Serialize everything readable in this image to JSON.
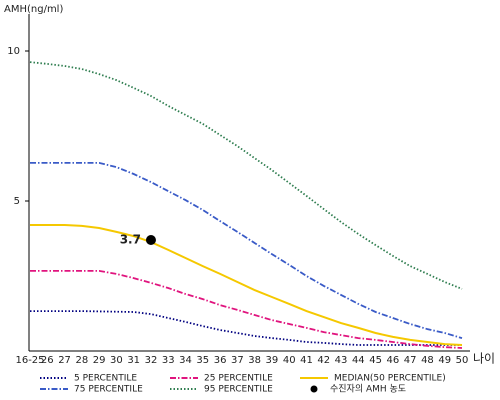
{
  "chart_data": {
    "type": "line",
    "y_label": "AMH(ng/ml)",
    "x_label": "나이",
    "categories": [
      "16-25",
      "26",
      "27",
      "28",
      "29",
      "30",
      "31",
      "32",
      "33",
      "34",
      "35",
      "36",
      "37",
      "38",
      "39",
      "40",
      "41",
      "42",
      "43",
      "44",
      "45",
      "46",
      "47",
      "48",
      "49",
      "50"
    ],
    "ylim": [
      0,
      11.2
    ],
    "yticks": [
      5,
      10
    ],
    "series": [
      {
        "name": "5 PERCENTILE",
        "color": "#000080",
        "style": "dotted",
        "values": [
          1.33,
          1.33,
          1.33,
          1.33,
          1.32,
          1.31,
          1.3,
          1.23,
          1.1,
          0.97,
          0.83,
          0.7,
          0.6,
          0.5,
          0.43,
          0.37,
          0.3,
          0.27,
          0.23,
          0.2,
          0.2,
          0.2,
          0.2,
          0.2,
          0.2,
          0.2
        ]
      },
      {
        "name": "25 PERCENTILE",
        "color": "#e0147e",
        "style": "dashdot",
        "values": [
          2.67,
          2.67,
          2.67,
          2.67,
          2.67,
          2.57,
          2.43,
          2.27,
          2.1,
          1.9,
          1.73,
          1.53,
          1.37,
          1.2,
          1.03,
          0.9,
          0.77,
          0.63,
          0.53,
          0.43,
          0.37,
          0.3,
          0.23,
          0.17,
          0.13,
          0.1
        ]
      },
      {
        "name": "MEDIAN(50 PERCENTILE)",
        "color": "#f5c800",
        "style": "solid",
        "values": [
          4.2,
          4.2,
          4.2,
          4.17,
          4.1,
          3.97,
          3.83,
          3.63,
          3.37,
          3.1,
          2.83,
          2.57,
          2.3,
          2.03,
          1.8,
          1.57,
          1.33,
          1.13,
          0.93,
          0.77,
          0.6,
          0.47,
          0.37,
          0.3,
          0.23,
          0.2
        ]
      },
      {
        "name": "75 PERCENTILE",
        "color": "#3a5bc7",
        "style": "dashdot",
        "values": [
          6.27,
          6.27,
          6.27,
          6.27,
          6.27,
          6.13,
          5.9,
          5.63,
          5.33,
          5.03,
          4.7,
          4.33,
          3.97,
          3.6,
          3.23,
          2.87,
          2.5,
          2.17,
          1.87,
          1.57,
          1.3,
          1.1,
          0.9,
          0.73,
          0.6,
          0.43
        ]
      },
      {
        "name": "95 PERCENTILE",
        "color": "#2e7d4f",
        "style": "dotted",
        "values": [
          9.63,
          9.57,
          9.5,
          9.4,
          9.23,
          9.03,
          8.77,
          8.5,
          8.17,
          7.87,
          7.57,
          7.2,
          6.83,
          6.43,
          6.03,
          5.6,
          5.17,
          4.73,
          4.3,
          3.9,
          3.53,
          3.17,
          2.83,
          2.57,
          2.3,
          2.07
        ]
      }
    ],
    "point": {
      "name": "수진자의 AMH 농도",
      "color": "#000000",
      "category": "32",
      "value": 3.7
    }
  }
}
